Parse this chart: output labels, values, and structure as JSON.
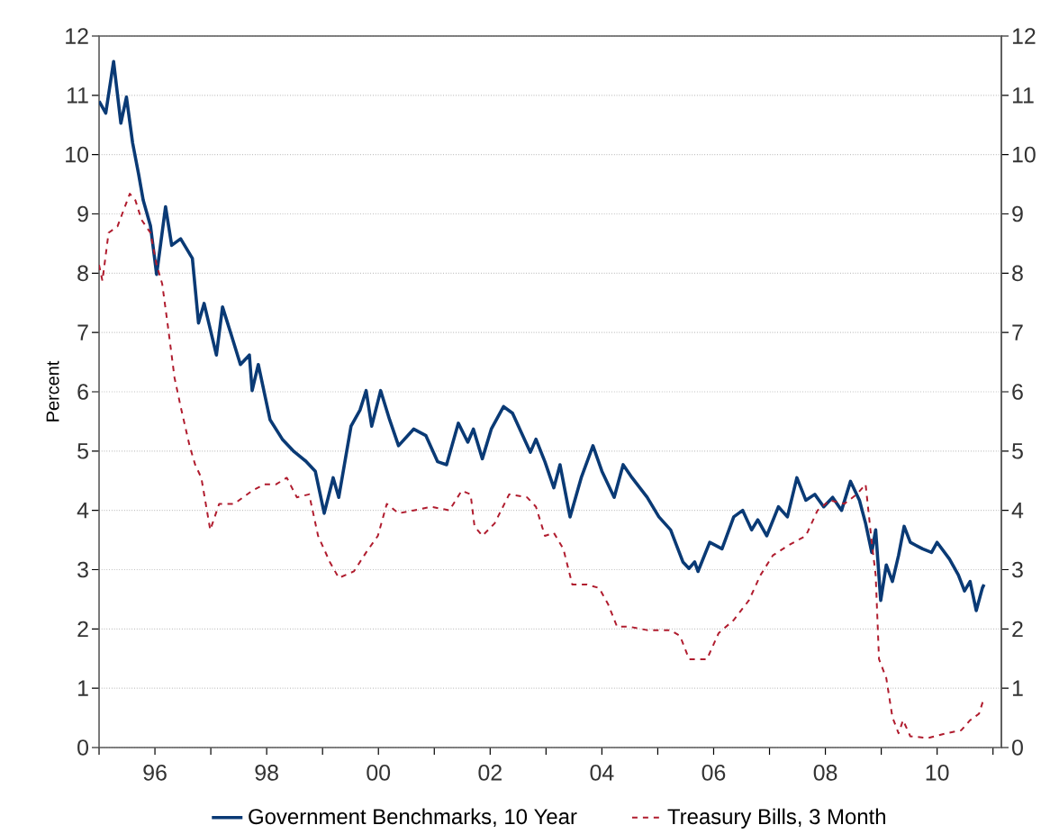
{
  "chart_data": {
    "type": "line",
    "ylabel": "Percent",
    "series": [
      {
        "name": "Government Benchmarks, 10 Year",
        "color": "#0a3a75",
        "line_style": "solid",
        "x": [
          1995.0,
          1995.12,
          1995.26,
          1995.39,
          1995.49,
          1995.6,
          1995.71,
          1995.79,
          1995.92,
          1996.03,
          1996.19,
          1996.3,
          1996.46,
          1996.67,
          1996.78,
          1996.88,
          1997.1,
          1997.21,
          1997.37,
          1997.53,
          1997.69,
          1997.74,
          1997.85,
          1998.06,
          1998.28,
          1998.49,
          1998.7,
          1998.87,
          1999.03,
          1999.19,
          1999.29,
          1999.51,
          1999.67,
          1999.78,
          1999.88,
          2000.04,
          2000.2,
          2000.36,
          2000.63,
          2000.85,
          2001.06,
          2001.22,
          2001.43,
          2001.6,
          2001.7,
          2001.86,
          2002.02,
          2002.24,
          2002.4,
          2002.56,
          2002.72,
          2002.82,
          2002.98,
          2003.14,
          2003.25,
          2003.43,
          2003.63,
          2003.84,
          2004.0,
          2004.22,
          2004.38,
          2004.54,
          2004.81,
          2005.02,
          2005.23,
          2005.45,
          2005.56,
          2005.66,
          2005.72,
          2005.93,
          2006.15,
          2006.36,
          2006.52,
          2006.68,
          2006.79,
          2006.95,
          2007.16,
          2007.32,
          2007.49,
          2007.65,
          2007.81,
          2007.97,
          2008.13,
          2008.29,
          2008.45,
          2008.61,
          2008.72,
          2008.83,
          2008.9,
          2008.99,
          2009.09,
          2009.2,
          2009.31,
          2009.41,
          2009.52,
          2009.74,
          2009.9,
          2010.0,
          2010.22,
          2010.38,
          2010.49,
          2010.59,
          2010.7,
          2010.81,
          2010.84
        ],
        "values": [
          10.9,
          10.7,
          11.57,
          10.53,
          10.97,
          10.2,
          9.66,
          9.23,
          8.8,
          7.98,
          9.12,
          8.47,
          8.58,
          8.25,
          7.16,
          7.49,
          6.62,
          7.43,
          6.95,
          6.46,
          6.62,
          6.02,
          6.46,
          5.53,
          5.2,
          4.99,
          4.83,
          4.66,
          3.95,
          4.55,
          4.22,
          5.42,
          5.69,
          6.02,
          5.42,
          6.02,
          5.53,
          5.09,
          5.37,
          5.26,
          4.82,
          4.77,
          5.47,
          5.15,
          5.37,
          4.87,
          5.37,
          5.75,
          5.64,
          5.31,
          4.98,
          5.2,
          4.82,
          4.38,
          4.77,
          3.89,
          4.55,
          5.09,
          4.66,
          4.22,
          4.77,
          4.55,
          4.22,
          3.89,
          3.67,
          3.13,
          3.02,
          3.13,
          2.97,
          3.46,
          3.35,
          3.89,
          4.0,
          3.67,
          3.84,
          3.57,
          4.06,
          3.89,
          4.55,
          4.17,
          4.27,
          4.06,
          4.22,
          4.0,
          4.49,
          4.17,
          3.78,
          3.29,
          3.67,
          2.48,
          3.08,
          2.8,
          3.24,
          3.73,
          3.46,
          3.35,
          3.29,
          3.46,
          3.18,
          2.91,
          2.64,
          2.8,
          2.31,
          2.69,
          2.75
        ]
      },
      {
        "name": "Treasury Bills, 3 Month",
        "color": "#b01c2e",
        "line_style": "dashed",
        "x": [
          1995.0,
          1995.06,
          1995.17,
          1995.33,
          1995.55,
          1995.65,
          1995.76,
          1995.92,
          1996.03,
          1996.13,
          1996.24,
          1996.35,
          1996.46,
          1996.62,
          1996.72,
          1996.83,
          1996.99,
          1997.15,
          1997.42,
          1997.74,
          1997.96,
          1998.17,
          1998.36,
          1998.54,
          1998.76,
          1998.92,
          1999.13,
          1999.29,
          1999.56,
          1999.78,
          1999.99,
          2000.15,
          2000.36,
          2000.63,
          2000.95,
          2001.27,
          2001.49,
          2001.65,
          2001.72,
          2001.86,
          2002.08,
          2002.34,
          2002.66,
          2002.82,
          2002.98,
          2003.14,
          2003.31,
          2003.47,
          2003.73,
          2003.95,
          2004.11,
          2004.27,
          2004.48,
          2004.81,
          2005.23,
          2005.4,
          2005.56,
          2005.88,
          2006.09,
          2006.36,
          2006.63,
          2006.84,
          2007.06,
          2007.32,
          2007.65,
          2007.86,
          2008.08,
          2008.34,
          2008.56,
          2008.72,
          2008.83,
          2008.9,
          2008.96,
          2009.09,
          2009.2,
          2009.31,
          2009.39,
          2009.52,
          2009.84,
          2010.17,
          2010.43,
          2010.59,
          2010.75,
          2010.84
        ],
        "values": [
          8.14,
          7.87,
          8.68,
          8.79,
          9.34,
          9.23,
          8.9,
          8.68,
          8.14,
          7.82,
          7.05,
          6.24,
          5.75,
          5.09,
          4.77,
          4.55,
          3.67,
          4.11,
          4.11,
          4.33,
          4.44,
          4.44,
          4.55,
          4.22,
          4.27,
          3.57,
          3.13,
          2.86,
          2.97,
          3.29,
          3.57,
          4.11,
          3.95,
          4.0,
          4.06,
          4.0,
          4.33,
          4.27,
          3.73,
          3.57,
          3.78,
          4.27,
          4.22,
          4.06,
          3.57,
          3.62,
          3.35,
          2.75,
          2.75,
          2.69,
          2.42,
          2.04,
          2.04,
          1.98,
          1.98,
          1.88,
          1.49,
          1.49,
          1.93,
          2.15,
          2.48,
          2.91,
          3.24,
          3.4,
          3.57,
          4.0,
          4.17,
          4.11,
          4.27,
          4.44,
          3.46,
          2.91,
          1.49,
          1.17,
          0.51,
          0.24,
          0.46,
          0.19,
          0.16,
          0.24,
          0.29,
          0.46,
          0.57,
          0.84
        ]
      }
    ],
    "xlim": [
      1995.0,
      2011.15
    ],
    "xticks": [
      {
        "value": 1995,
        "label": null
      },
      {
        "value": 1996,
        "label": "96"
      },
      {
        "value": 1997,
        "label": null
      },
      {
        "value": 1998,
        "label": "98"
      },
      {
        "value": 1999,
        "label": null
      },
      {
        "value": 2000,
        "label": "00"
      },
      {
        "value": 2001,
        "label": null
      },
      {
        "value": 2002,
        "label": "02"
      },
      {
        "value": 2003,
        "label": null
      },
      {
        "value": 2004,
        "label": "04"
      },
      {
        "value": 2005,
        "label": null
      },
      {
        "value": 2006,
        "label": "06"
      },
      {
        "value": 2007,
        "label": null
      },
      {
        "value": 2008,
        "label": "08"
      },
      {
        "value": 2009,
        "label": null
      },
      {
        "value": 2010,
        "label": "10"
      },
      {
        "value": 2011,
        "label": null
      }
    ],
    "ylim": [
      0,
      12
    ],
    "yticks": [
      0,
      1,
      2,
      3,
      4,
      5,
      6,
      7,
      8,
      9,
      10,
      11,
      12
    ],
    "y2lim": [
      0,
      12
    ],
    "y2ticks": [
      0,
      1,
      2,
      3,
      4,
      5,
      6,
      7,
      8,
      9,
      10,
      11,
      12
    ],
    "grid": "y",
    "legend": "bottom"
  }
}
